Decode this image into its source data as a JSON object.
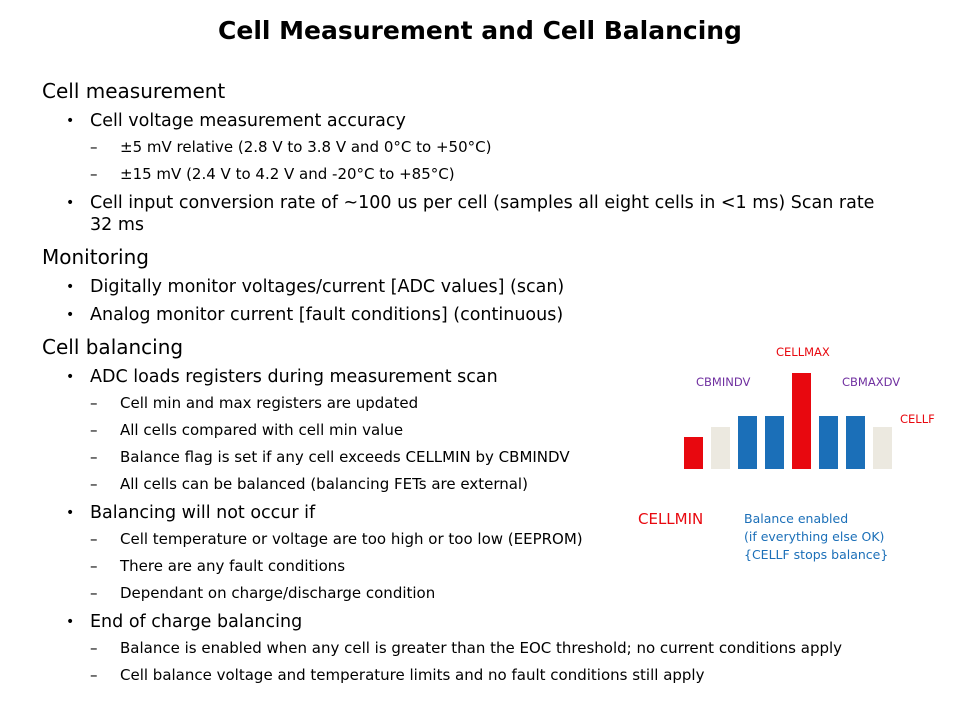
{
  "title": "Cell Measurement and Cell Balancing",
  "sections": {
    "cell_measurement": {
      "heading": "Cell measurement",
      "item1": "Cell voltage measurement accuracy",
      "item1_sub1": "±5 mV relative (2.8 V to 3.8 V and 0°C to +50°C)",
      "item1_sub2": "±15 mV (2.4 V to 4.2 V and -20°C to +85°C)",
      "item2": "Cell input conversion rate of ~100 us per cell (samples all eight cells in <1 ms) Scan rate 32 ms"
    },
    "monitoring": {
      "heading": "Monitoring",
      "item1": "Digitally monitor voltages/current [ADC values] (scan)",
      "item2": "Analog monitor current [fault conditions] (continuous)"
    },
    "cell_balancing": {
      "heading": "Cell balancing",
      "item1": "ADC loads registers during measurement scan",
      "item1_sub1": "Cell min and max registers are updated",
      "item1_sub2": "All cells compared with cell min value",
      "item1_sub3": "Balance flag is set if any cell exceeds CELLMIN by CBMINDV",
      "item1_sub4": "All cells can be balanced (balancing FETs are external)",
      "item2": "Balancing will not occur if",
      "item2_sub1": "Cell temperature or voltage are too high or too low (EEPROM)",
      "item2_sub2": "There are any fault conditions",
      "item2_sub3": "Dependant on charge/discharge condition",
      "item3": "End of charge balancing",
      "item3_sub1": "Balance is enabled when any cell is greater than the EOC threshold; no current conditions apply",
      "item3_sub2": "Cell balance voltage and temperature limits and no fault conditions still apply"
    }
  },
  "markers": {
    "bullet": "•",
    "dash": "–"
  },
  "diagram": {
    "labels": {
      "cellmax": "CELLMAX",
      "cbmindv": "CBMINDV",
      "cbmaxdv": "CBMAXDV",
      "cellf": "CELLF",
      "cellmin": "CELLMIN"
    },
    "note": {
      "line1": "Balance enabled",
      "line2": "(if everything else OK)",
      "line3": "{CELLF stops balance}"
    },
    "colors": {
      "red": "#e8080f",
      "blue": "#1b6fb8",
      "beige": "#ece9e0",
      "purple": "#7030a0"
    },
    "cell_levels": [
      0.33,
      0.44,
      0.55,
      0.55,
      1.0,
      0.55,
      0.55,
      0.44
    ],
    "cell_colors": [
      "red",
      "beige",
      "blue",
      "blue",
      "red",
      "blue",
      "blue",
      "beige"
    ]
  }
}
